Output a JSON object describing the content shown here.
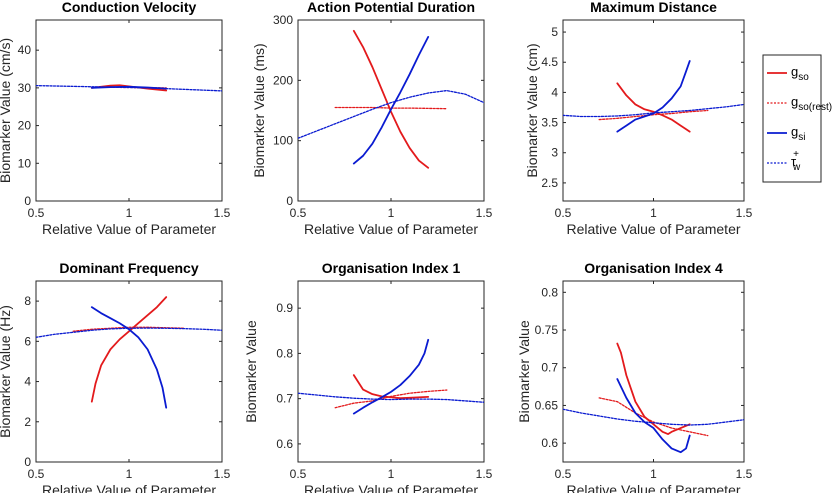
{
  "legend": {
    "location": "right",
    "entries": [
      {
        "id": "gso",
        "base": "g",
        "sub": "so",
        "sup": "",
        "color": "#e31a1c",
        "dash": "solid"
      },
      {
        "id": "gsorest",
        "base": "g",
        "sub": "so(rest)",
        "sup": "",
        "color": "#e31a1c",
        "dash": "dotted"
      },
      {
        "id": "gsi",
        "base": "g",
        "sub": "si",
        "sup": "",
        "color": "#0a1bd1",
        "dash": "solid"
      },
      {
        "id": "tauw",
        "base": "τ",
        "sub": "w",
        "sup": "+",
        "color": "#0a1bd1",
        "dash": "dotted"
      }
    ]
  },
  "chart_data": [
    {
      "type": "line",
      "title": "Conduction Velocity",
      "xlabel": "Relative Value of Parameter",
      "ylabel": "Biomarker Value (cm/s)",
      "xlim": [
        0.5,
        1.5
      ],
      "ylim": [
        0,
        48
      ],
      "xticks": [
        0.5,
        1,
        1.5
      ],
      "xticklabels": [
        "0.5",
        "1",
        "1.5"
      ],
      "yticks": [
        0,
        10,
        20,
        30,
        40
      ],
      "yticklabels": [
        "0",
        "10",
        "20",
        "30",
        "40"
      ],
      "series": [
        {
          "name": "gso",
          "x": [
            0.8,
            0.9,
            0.95,
            1.0,
            1.1,
            1.2
          ],
          "y": [
            30.0,
            30.6,
            30.7,
            30.4,
            29.8,
            29.3
          ]
        },
        {
          "name": "gsorest",
          "x": [
            0.8,
            1.0,
            1.2
          ],
          "y": [
            30.2,
            30.1,
            30.0
          ]
        },
        {
          "name": "gsi",
          "x": [
            0.8,
            0.9,
            1.0,
            1.1,
            1.2
          ],
          "y": [
            30.0,
            30.2,
            30.3,
            30.1,
            29.8
          ]
        },
        {
          "name": "tauw",
          "x": [
            0.5,
            0.7,
            0.9,
            1.0,
            1.1,
            1.3,
            1.5
          ],
          "y": [
            30.6,
            30.4,
            30.2,
            30.1,
            30.0,
            29.6,
            29.2
          ]
        }
      ]
    },
    {
      "type": "line",
      "title": "Action Potential Duration",
      "xlabel": "Relative Value of Parameter",
      "ylabel": "Biomarker Value (ms)",
      "xlim": [
        0.5,
        1.5
      ],
      "ylim": [
        0,
        300
      ],
      "xticks": [
        0.5,
        1,
        1.5
      ],
      "xticklabels": [
        "0.5",
        "1",
        "1.5"
      ],
      "yticks": [
        0,
        100,
        200,
        300
      ],
      "yticklabels": [
        "0",
        "100",
        "200",
        "300"
      ],
      "series": [
        {
          "name": "gso",
          "x": [
            0.8,
            0.85,
            0.9,
            0.95,
            1.0,
            1.05,
            1.1,
            1.15,
            1.2
          ],
          "y": [
            282,
            255,
            222,
            185,
            148,
            115,
            88,
            67,
            55
          ]
        },
        {
          "name": "gsorest",
          "x": [
            0.7,
            0.9,
            1.0,
            1.1,
            1.3
          ],
          "y": [
            155,
            155,
            154,
            154,
            153
          ]
        },
        {
          "name": "gsi",
          "x": [
            0.8,
            0.85,
            0.9,
            0.95,
            1.0,
            1.05,
            1.1,
            1.15,
            1.2
          ],
          "y": [
            62,
            75,
            95,
            122,
            152,
            180,
            210,
            242,
            272
          ]
        },
        {
          "name": "tauw",
          "x": [
            0.5,
            0.6,
            0.7,
            0.8,
            0.9,
            1.0,
            1.1,
            1.2,
            1.3,
            1.4,
            1.5
          ],
          "y": [
            104,
            116,
            128,
            140,
            152,
            163,
            172,
            179,
            183,
            177,
            163
          ]
        }
      ]
    },
    {
      "type": "line",
      "title": "Maximum Distance",
      "xlabel": "Relative Value of Parameter",
      "ylabel": "Biomarker Value (cm)",
      "xlim": [
        0.5,
        1.5
      ],
      "ylim": [
        2.2,
        5.2
      ],
      "xticks": [
        0.5,
        1,
        1.5
      ],
      "xticklabels": [
        "0.5",
        "1",
        "1.5"
      ],
      "yticks": [
        2.5,
        3,
        3.5,
        4,
        4.5,
        5
      ],
      "yticklabels": [
        "2.5",
        "3",
        "3.5",
        "4",
        "4.5",
        "5"
      ],
      "series": [
        {
          "name": "gso",
          "x": [
            0.8,
            0.85,
            0.9,
            0.95,
            1.0,
            1.05,
            1.1,
            1.15,
            1.2
          ],
          "y": [
            4.15,
            3.95,
            3.8,
            3.72,
            3.68,
            3.62,
            3.55,
            3.45,
            3.35
          ]
        },
        {
          "name": "gsorest",
          "x": [
            0.7,
            0.8,
            0.9,
            1.0,
            1.1,
            1.2,
            1.3
          ],
          "y": [
            3.55,
            3.57,
            3.6,
            3.63,
            3.65,
            3.68,
            3.7
          ]
        },
        {
          "name": "gsi",
          "x": [
            0.8,
            0.85,
            0.9,
            0.95,
            1.0,
            1.05,
            1.1,
            1.15,
            1.18,
            1.2
          ],
          "y": [
            3.35,
            3.45,
            3.55,
            3.6,
            3.65,
            3.75,
            3.9,
            4.1,
            4.35,
            4.52
          ]
        },
        {
          "name": "tauw",
          "x": [
            0.5,
            0.6,
            0.7,
            0.8,
            0.9,
            1.0,
            1.1,
            1.2,
            1.3,
            1.4,
            1.5
          ],
          "y": [
            3.62,
            3.6,
            3.6,
            3.61,
            3.63,
            3.66,
            3.68,
            3.7,
            3.73,
            3.76,
            3.8
          ]
        }
      ]
    },
    {
      "type": "line",
      "title": "Dominant Frequency",
      "xlabel": "Relative Value of Parameter",
      "ylabel": "Biomarker Value (Hz)",
      "xlim": [
        0.5,
        1.5
      ],
      "ylim": [
        0,
        9
      ],
      "xticks": [
        0.5,
        1,
        1.5
      ],
      "xticklabels": [
        "0.5",
        "1",
        "1.5"
      ],
      "yticks": [
        0,
        2,
        4,
        6,
        8
      ],
      "yticklabels": [
        "0",
        "2",
        "4",
        "6",
        "8"
      ],
      "series": [
        {
          "name": "gso",
          "x": [
            0.8,
            0.82,
            0.85,
            0.9,
            0.95,
            1.0,
            1.05,
            1.1,
            1.15,
            1.2
          ],
          "y": [
            3.0,
            3.9,
            4.8,
            5.6,
            6.1,
            6.5,
            6.9,
            7.3,
            7.7,
            8.2
          ]
        },
        {
          "name": "gsorest",
          "x": [
            0.7,
            0.8,
            0.9,
            1.0,
            1.1,
            1.3
          ],
          "y": [
            6.5,
            6.6,
            6.65,
            6.7,
            6.7,
            6.65
          ]
        },
        {
          "name": "gsi",
          "x": [
            0.8,
            0.85,
            0.9,
            0.95,
            1.0,
            1.05,
            1.1,
            1.15,
            1.18,
            1.2
          ],
          "y": [
            7.7,
            7.4,
            7.15,
            6.9,
            6.6,
            6.2,
            5.6,
            4.6,
            3.7,
            2.7
          ]
        },
        {
          "name": "tauw",
          "x": [
            0.5,
            0.6,
            0.7,
            0.8,
            0.9,
            1.0,
            1.1,
            1.2,
            1.3,
            1.4,
            1.5
          ],
          "y": [
            6.2,
            6.35,
            6.45,
            6.55,
            6.62,
            6.65,
            6.66,
            6.65,
            6.63,
            6.6,
            6.55
          ]
        }
      ]
    },
    {
      "type": "line",
      "title": "Organisation Index 1",
      "xlabel": "Relative Value of Parameter",
      "ylabel": "Biomarker Value",
      "xlim": [
        0.5,
        1.5
      ],
      "ylim": [
        0.56,
        0.96
      ],
      "xticks": [
        0.5,
        1,
        1.5
      ],
      "xticklabels": [
        "0.5",
        "1",
        "1.5"
      ],
      "yticks": [
        0.6,
        0.7,
        0.8,
        0.9
      ],
      "yticklabels": [
        "0.6",
        "0.7",
        "0.8",
        "0.9"
      ],
      "series": [
        {
          "name": "gso",
          "x": [
            0.8,
            0.85,
            0.9,
            0.95,
            1.0,
            1.05,
            1.1,
            1.2
          ],
          "y": [
            0.752,
            0.72,
            0.71,
            0.705,
            0.703,
            0.701,
            0.702,
            0.704
          ]
        },
        {
          "name": "gsorest",
          "x": [
            0.7,
            0.8,
            0.9,
            1.0,
            1.1,
            1.2,
            1.3
          ],
          "y": [
            0.68,
            0.69,
            0.695,
            0.705,
            0.712,
            0.716,
            0.719
          ]
        },
        {
          "name": "gsi",
          "x": [
            0.8,
            0.85,
            0.9,
            0.95,
            1.0,
            1.05,
            1.1,
            1.15,
            1.18,
            1.2
          ],
          "y": [
            0.667,
            0.68,
            0.692,
            0.703,
            0.715,
            0.73,
            0.75,
            0.775,
            0.8,
            0.83
          ]
        },
        {
          "name": "tauw",
          "x": [
            0.5,
            0.6,
            0.7,
            0.8,
            0.9,
            1.0,
            1.1,
            1.2,
            1.3,
            1.4,
            1.5
          ],
          "y": [
            0.712,
            0.708,
            0.704,
            0.701,
            0.699,
            0.698,
            0.699,
            0.699,
            0.698,
            0.695,
            0.692
          ]
        }
      ]
    },
    {
      "type": "line",
      "title": "Organisation Index 4",
      "xlabel": "Relative Value of Parameter",
      "ylabel": "Biomarker Value",
      "xlim": [
        0.5,
        1.5
      ],
      "ylim": [
        0.575,
        0.815
      ],
      "xticks": [
        0.5,
        1,
        1.5
      ],
      "xticklabels": [
        "0.5",
        "1",
        "1.5"
      ],
      "yticks": [
        0.6,
        0.65,
        0.7,
        0.75,
        0.8
      ],
      "yticklabels": [
        "0.6",
        "0.65",
        "0.7",
        "0.75",
        "0.8"
      ],
      "series": [
        {
          "name": "gso",
          "x": [
            0.8,
            0.82,
            0.85,
            0.9,
            0.95,
            1.0,
            1.05,
            1.08,
            1.1,
            1.15,
            1.2
          ],
          "y": [
            0.732,
            0.72,
            0.69,
            0.655,
            0.635,
            0.625,
            0.615,
            0.612,
            0.615,
            0.62,
            0.625
          ]
        },
        {
          "name": "gsorest",
          "x": [
            0.7,
            0.8,
            0.9,
            1.0,
            1.1,
            1.2,
            1.3
          ],
          "y": [
            0.66,
            0.655,
            0.64,
            0.628,
            0.62,
            0.615,
            0.61
          ]
        },
        {
          "name": "gsi",
          "x": [
            0.8,
            0.85,
            0.9,
            0.95,
            1.0,
            1.05,
            1.1,
            1.15,
            1.18,
            1.2
          ],
          "y": [
            0.685,
            0.66,
            0.64,
            0.628,
            0.62,
            0.605,
            0.593,
            0.588,
            0.593,
            0.61
          ]
        },
        {
          "name": "tauw",
          "x": [
            0.5,
            0.6,
            0.7,
            0.8,
            0.9,
            1.0,
            1.1,
            1.2,
            1.3,
            1.4,
            1.5
          ],
          "y": [
            0.645,
            0.64,
            0.636,
            0.632,
            0.629,
            0.627,
            0.625,
            0.624,
            0.625,
            0.628,
            0.631
          ]
        }
      ]
    }
  ]
}
